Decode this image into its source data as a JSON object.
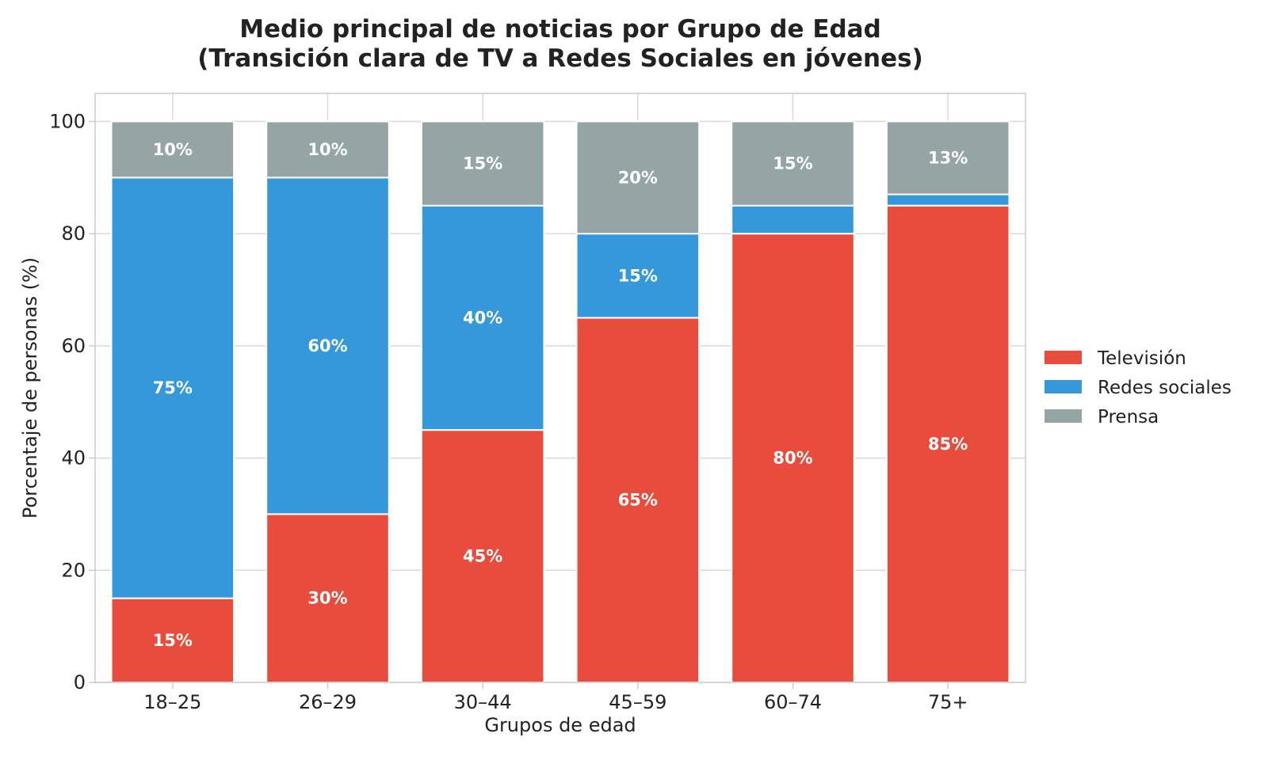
{
  "chart_data": {
    "type": "bar",
    "stacked": true,
    "title": "Medio principal de noticias por Grupo de Edad",
    "subtitle": "(Transición clara de TV a Redes Sociales en jóvenes)",
    "xlabel": "Grupos de edad",
    "ylabel": "Porcentaje de personas (%)",
    "ylim": [
      0,
      105
    ],
    "yticks": [
      "0",
      "20",
      "40",
      "60",
      "80",
      "100"
    ],
    "categories": [
      "18–25",
      "26–29",
      "30–44",
      "45–59",
      "60–74",
      "75+"
    ],
    "grid": true,
    "legend_position": "right",
    "series": [
      {
        "name": "Televisión",
        "color": "#e74c3c",
        "values": [
          15,
          30,
          45,
          65,
          80,
          85
        ],
        "labels": [
          "15%",
          "30%",
          "45%",
          "65%",
          "80%",
          "85%"
        ]
      },
      {
        "name": "Redes sociales",
        "color": "#3498db",
        "values": [
          75,
          60,
          40,
          15,
          5,
          2
        ],
        "labels": [
          "75%",
          "60%",
          "40%",
          "15%",
          "",
          ""
        ]
      },
      {
        "name": "Prensa",
        "color": "#95a5a6",
        "values": [
          10,
          10,
          15,
          20,
          15,
          13
        ],
        "labels": [
          "10%",
          "10%",
          "15%",
          "20%",
          "15%",
          "13%"
        ]
      }
    ]
  }
}
